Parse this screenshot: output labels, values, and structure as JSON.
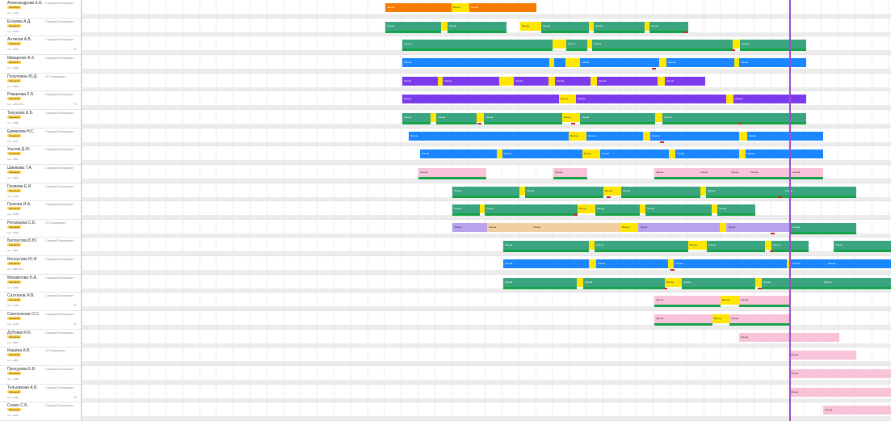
{
  "people": [
    {
      "name": "Александрова Е.Б.",
      "position": "Старший Специалист",
      "badge": "Сменный",
      "meta": "тел.: 1234",
      "meta_extra": "",
      "marker": ""
    },
    {
      "name": "Егорова А.Д.",
      "position": "Старший Специалист",
      "badge": "Сменный",
      "meta": "тел.: 5678",
      "meta_extra": "",
      "marker": ""
    },
    {
      "name": "Антипов А.В.",
      "position": "Старший Специалист",
      "badge": "Сменный",
      "meta": "тел.: 9012",
      "meta_extra": "",
      "marker": "+1"
    },
    {
      "name": "Иващенко А.З.",
      "position": "Старший Специалист",
      "badge": "Сменный",
      "meta": "тел.: 3456",
      "meta_extra": "",
      "marker": ""
    },
    {
      "name": "Полункина Ю.Д.",
      "position": "СО Специалист",
      "badge": "Сменный",
      "meta": "тел.: 7890",
      "meta_extra": "",
      "marker": ""
    },
    {
      "name": "Романова Е.Б.",
      "position": "Старший Специалист",
      "badge": "Сменный",
      "meta": "тел.: 2345",
      "meta_extra": "15 ч.",
      "marker": "+1"
    },
    {
      "name": "Тихунова Е.Б.",
      "position": "Старший Специалист",
      "badge": "Сменный",
      "meta": "тел.: 6789",
      "meta_extra": "",
      "marker": ""
    },
    {
      "name": "Ермакова Н.С.",
      "position": "Старший Специалист",
      "badge": "Сменный",
      "meta": "тел.: 0123",
      "meta_extra": "",
      "marker": ""
    },
    {
      "name": "Хасков Д.Ю.",
      "position": "Старший Специалист",
      "badge": "Сменный",
      "meta": "тел.: 4567",
      "meta_extra": "",
      "marker": ""
    },
    {
      "name": "Шимкова Т.А.",
      "position": "Старший Специалист",
      "badge": "Сменный",
      "meta": "тел.: 8901",
      "meta_extra": "",
      "marker": ""
    },
    {
      "name": "Громова Е.И.",
      "position": "Старший Специалист",
      "badge": "Сменный",
      "meta": "тел.: 2345",
      "meta_extra": "",
      "marker": ""
    },
    {
      "name": "Грекова И.А.",
      "position": "Старший Специалист",
      "badge": "Сменный",
      "meta": "тел.: 6789",
      "meta_extra": "",
      "marker": ""
    },
    {
      "name": "Ротанцева С.Б.",
      "position": "СО Специалист",
      "badge": "Сменный",
      "meta": "тел.: 0123",
      "meta_extra": "",
      "marker": ""
    },
    {
      "name": "Белоусова Б.Ю.",
      "position": "Старший Специалист",
      "badge": "Сменный",
      "meta": "тел.: 4567",
      "meta_extra": "",
      "marker": ""
    },
    {
      "name": "Белоусова Ю.И.",
      "position": "Старший Специалист",
      "badge": "Сменный",
      "meta": "тел.: 8901",
      "meta_extra": "15 ч.",
      "marker": ""
    },
    {
      "name": "Михайлова Н.А.",
      "position": "Старший Специалист",
      "badge": "Сменный",
      "meta": "тел.: 2345",
      "meta_extra": "",
      "marker": ""
    },
    {
      "name": "Салтанов Я.В.",
      "position": "Старший Специалист",
      "badge": "Сменный",
      "meta": "тел.: 6789",
      "meta_extra": "",
      "marker": "+1"
    },
    {
      "name": "Смоленкова О.С.",
      "position": "Старший Специалист",
      "badge": "Сменный",
      "meta": "тел.: 0123",
      "meta_extra": "",
      "marker": "+1"
    },
    {
      "name": "Дубовая И.К.",
      "position": "Старший Специалист",
      "badge": "Сменный",
      "meta": "тел.: 4567",
      "meta_extra": "",
      "marker": ""
    },
    {
      "name": "Кашина А.В.",
      "position": "СО Специалист",
      "badge": "Сменный",
      "meta": "тел.: 8901",
      "meta_extra": "",
      "marker": ""
    },
    {
      "name": "Прокурова Е.В.",
      "position": "Старший Специалист",
      "badge": "Сменный",
      "meta": "тел.: 2345",
      "meta_extra": "",
      "marker": ""
    },
    {
      "name": "Тельникова А.В.",
      "position": "Старший Специалист",
      "badge": "Сменный",
      "meta": "тел.: 6789",
      "meta_extra": "",
      "marker": "+1"
    },
    {
      "name": "Семко С.Б.",
      "position": "Старший Специалист",
      "badge": "Сменный",
      "meta": "тел.: 0123",
      "meta_extra": "",
      "marker": ""
    }
  ],
  "colors": {
    "green": "#3aa57e",
    "darkgreen": "#16a34a",
    "blue": "#1a86ff",
    "purple": "#7c3aed",
    "orange": "#f57c00",
    "yellow": "#ffe600",
    "pink": "#f8c2d8",
    "peach": "#f2cfa0",
    "lavender": "#b8a2f0",
    "today": "#9c4dcc"
  },
  "shift_label": "Смена",
  "break_label": "Выход"
}
